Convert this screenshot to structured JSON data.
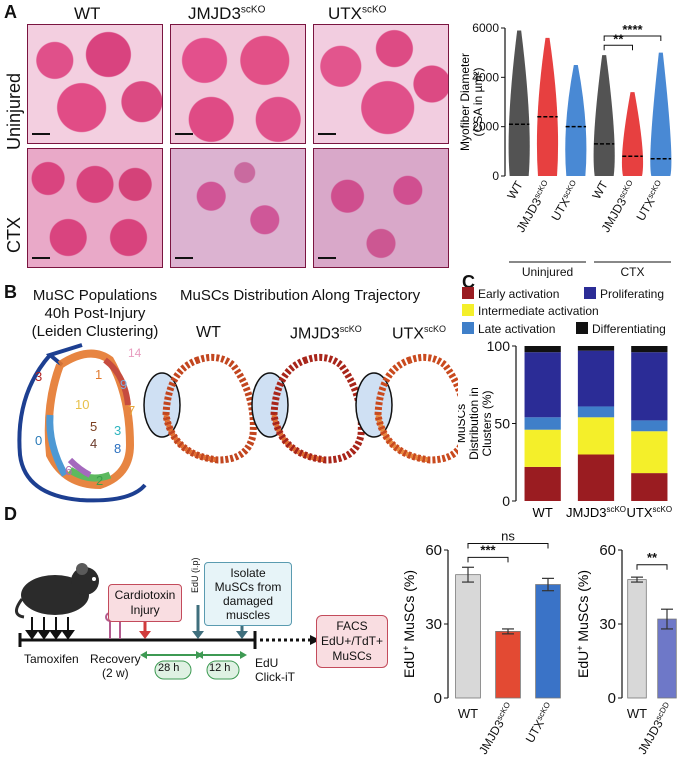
{
  "panel_labels": {
    "a": "A",
    "b": "B",
    "c": "C",
    "d": "D"
  },
  "panelA": {
    "columns": [
      "WT",
      "JMJD3",
      "UTX"
    ],
    "col_sup": [
      "",
      "scKO",
      "scKO"
    ],
    "rows": [
      "Uninjured",
      "CTX"
    ]
  },
  "panelB": {
    "left_title_lines": [
      "MuSC Populations",
      "40h Post-Injury",
      "(Leiden Clustering)"
    ],
    "right_title": "MuSCs Distribution Along Trajectory",
    "umap_titles": [
      "WT",
      "JMJD3",
      "UTX"
    ],
    "umap_sup": [
      "",
      "scKO",
      "scKO"
    ],
    "cluster_numbers": [
      "14",
      "3",
      "1",
      "9",
      "10",
      "7",
      "5",
      "4",
      "0",
      "3",
      "8",
      "6",
      "2"
    ]
  },
  "panelD_schematic": {
    "cardiotoxin": "Cardiotoxin\nInjury",
    "isolate": "Isolate\nMuSCs from\ndamaged\nmuscles",
    "edu_ip": "EdU (i.p)",
    "tamoxifen": "Tamoxifen",
    "recovery": "Recovery\n(2 w)",
    "t28": "28 h",
    "t12": "12 h",
    "edu_click": "EdU\nClick-iT",
    "facs": "FACS\nEdU+/TdT+\nMuSCs"
  },
  "chart_data": [
    {
      "type": "scatter",
      "panel": "A",
      "ylabel": "Myofiber Diameter (CSA in µm²)",
      "yticks": [
        0,
        2000,
        4000,
        6000
      ],
      "ylim": [
        0,
        6000
      ],
      "categories": [
        "WT",
        "JMJD3scKO",
        "UTXscKO",
        "WT",
        "JMJD3scKO",
        "UTXscKO"
      ],
      "groups": [
        "Uninjured",
        "CTX"
      ],
      "medians": [
        2100,
        2400,
        2000,
        1300,
        800,
        700
      ],
      "maxima": [
        5900,
        5600,
        4500,
        4900,
        3400,
        5000
      ],
      "colors": [
        "#444444",
        "#e53030",
        "#3a7fd0",
        "#444444",
        "#e53030",
        "#3a7fd0"
      ],
      "significance": [
        {
          "pair": [
            "WT",
            "JMJD3scKO"
          ],
          "group": "CTX",
          "label": "**"
        },
        {
          "pair": [
            "WT",
            "UTXscKO"
          ],
          "group": "CTX",
          "label": "****"
        }
      ]
    },
    {
      "type": "bar",
      "panel": "C",
      "stacked": true,
      "ylabel": "MuSCs Distribution in Clusters (%)",
      "yticks": [
        0,
        50,
        100
      ],
      "ylim": [
        0,
        100
      ],
      "categories": [
        "WT",
        "JMJD3scKO",
        "UTXscKO"
      ],
      "series": [
        {
          "name": "Early activation",
          "color": "#9a1c21",
          "values": [
            22,
            30,
            18
          ]
        },
        {
          "name": "Intermediate activation",
          "color": "#f4ef2a",
          "values": [
            24,
            24,
            27
          ]
        },
        {
          "name": "Late activation",
          "color": "#3f7fc9",
          "values": [
            8,
            7,
            7
          ]
        },
        {
          "name": "Proliferating",
          "color": "#2b2c96",
          "values": [
            42,
            36,
            44
          ]
        },
        {
          "name": "Differentiating",
          "color": "#111111",
          "values": [
            4,
            3,
            4
          ]
        }
      ]
    },
    {
      "type": "bar",
      "panel": "D-left",
      "ylabel": "EdU+ MuSCs (%)",
      "yticks": [
        0,
        30,
        60
      ],
      "ylim": [
        0,
        60
      ],
      "categories": [
        "WT",
        "JMJD3scKO",
        "UTXscKO"
      ],
      "values": [
        50,
        27,
        46
      ],
      "errors": [
        3,
        1,
        2.5
      ],
      "colors": [
        "#d8d8d8",
        "#e34a33",
        "#3a73c7"
      ],
      "significance": [
        {
          "pair": [
            "WT",
            "JMJD3scKO"
          ],
          "label": "***"
        },
        {
          "pair": [
            "WT",
            "UTXscKO"
          ],
          "label": "ns"
        }
      ]
    },
    {
      "type": "bar",
      "panel": "D-right",
      "ylabel": "EdU+ MuSCs (%)",
      "yticks": [
        0,
        30,
        60
      ],
      "ylim": [
        0,
        60
      ],
      "categories": [
        "WT",
        "JMJD3scDD"
      ],
      "values": [
        48,
        32
      ],
      "errors": [
        1,
        4
      ],
      "colors": [
        "#d8d8d8",
        "#6e78c8"
      ],
      "significance": [
        {
          "pair": [
            "WT",
            "JMJD3scDD"
          ],
          "label": "**"
        }
      ]
    }
  ]
}
